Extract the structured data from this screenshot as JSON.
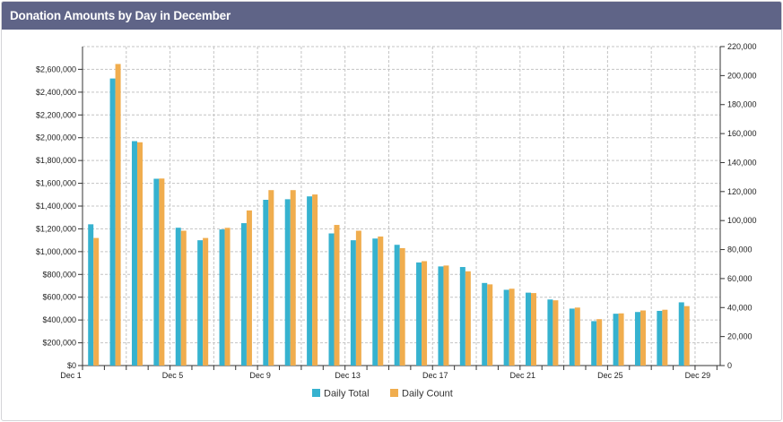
{
  "panel": {
    "title": "Donation Amounts by Day in December"
  },
  "chart_data": {
    "type": "bar",
    "title": "",
    "categories": [
      "Dec 1",
      "Dec 2",
      "Dec 3",
      "Dec 4",
      "Dec 5",
      "Dec 6",
      "Dec 7",
      "Dec 8",
      "Dec 9",
      "Dec 10",
      "Dec 11",
      "Dec 12",
      "Dec 13",
      "Dec 14",
      "Dec 15",
      "Dec 16",
      "Dec 17",
      "Dec 18",
      "Dec 19",
      "Dec 20",
      "Dec 21",
      "Dec 22",
      "Dec 23",
      "Dec 24",
      "Dec 25",
      "Dec 26",
      "Dec 27",
      "Dec 28",
      "Dec 29"
    ],
    "x_tick_labels": [
      {
        "index": 0,
        "label": "Dec 1"
      },
      {
        "index": 4,
        "label": "Dec 5"
      },
      {
        "index": 8,
        "label": "Dec 9"
      },
      {
        "index": 12,
        "label": "Dec 13"
      },
      {
        "index": 16,
        "label": "Dec 17"
      },
      {
        "index": 20,
        "label": "Dec 21"
      },
      {
        "index": 24,
        "label": "Dec 25"
      },
      {
        "index": 28,
        "label": "Dec 29"
      }
    ],
    "series": [
      {
        "name": "Daily Total",
        "axis": "left",
        "color": "#36b2cf",
        "values": [
          1240000,
          2520000,
          1970000,
          1640000,
          1210000,
          1100000,
          1195000,
          1250000,
          1455000,
          1460000,
          1485000,
          1160000,
          1100000,
          1115000,
          1060000,
          905000,
          870000,
          865000,
          725000,
          665000,
          640000,
          580000,
          500000,
          390000,
          455000,
          470000,
          480000,
          555000,
          0
        ]
      },
      {
        "name": "Daily Count",
        "axis": "right",
        "color": "#f0ad4e",
        "values": [
          88000,
          208000,
          154000,
          129000,
          93000,
          88000,
          95000,
          107000,
          121000,
          121000,
          118000,
          97000,
          93000,
          89000,
          81000,
          72000,
          69000,
          65000,
          56000,
          53000,
          50000,
          45000,
          40000,
          32000,
          36000,
          38000,
          38500,
          41000,
          0
        ]
      }
    ],
    "y_left": {
      "min": 0,
      "max": 2800000,
      "step": 200000,
      "tick_labels": [
        "$0",
        "$200,000",
        "$400,000",
        "$600,000",
        "$800,000",
        "$1,000,000",
        "$1,200,000",
        "$1,400,000",
        "$1,600,000",
        "$1,800,000",
        "$2,000,000",
        "$2,200,000",
        "$2,400,000",
        "$2,600,000"
      ]
    },
    "y_right": {
      "min": 0,
      "max": 220000,
      "step": 20000,
      "tick_labels": [
        "0",
        "20,000",
        "40,000",
        "60,000",
        "80,000",
        "100,000",
        "120,000",
        "140,000",
        "160,000",
        "180,000",
        "200,000",
        "220,000"
      ]
    },
    "grid": true,
    "legend_position": "bottom-center"
  }
}
